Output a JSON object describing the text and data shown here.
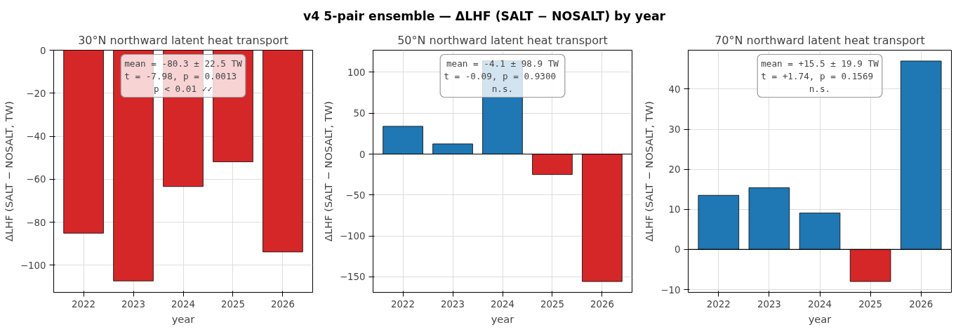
{
  "chart_data": [
    {
      "type": "bar",
      "title": "30°N northward latent heat transport",
      "xlabel": "year",
      "ylabel": "ΔLHF (SALT − NOSALT, TW)",
      "categories": [
        "2022",
        "2023",
        "2024",
        "2025",
        "2026"
      ],
      "values": [
        -85.1,
        -107.3,
        -63.4,
        -51.9,
        -93.8
      ],
      "colors": [
        "#d62728",
        "#d62728",
        "#d62728",
        "#d62728",
        "#d62728"
      ],
      "ylim": [
        -112.6,
        0
      ],
      "yticks": [
        -100,
        -80,
        -60,
        -40,
        -20,
        0
      ],
      "grid": true,
      "annotations": [
        "v4 5-pair ensemble — ΔLHF (SALT − NOSALT) by year",
        "mean = -80.3 ± 22.5 TW\nt = -7.98,  p = 0.0013\np < 0.01 ✓✓"
      ]
    },
    {
      "type": "bar",
      "title": "50°N northward latent heat transport",
      "xlabel": "year",
      "ylabel": "ΔLHF (SALT − NOSALT, TW)",
      "categories": [
        "2022",
        "2023",
        "2024",
        "2025",
        "2026"
      ],
      "values": [
        34,
        12.5,
        114,
        -25,
        -155.8
      ],
      "colors": [
        "#1f77b4",
        "#1f77b4",
        "#1f77b4",
        "#d62728",
        "#d62728"
      ],
      "ylim": [
        -169,
        127
      ],
      "yticks": [
        -150,
        -100,
        -50,
        0,
        50,
        100
      ],
      "grid": true,
      "ref_lines": [
        {
          "axis": "y",
          "value": 0,
          "color": "#000000"
        }
      ],
      "annotations": [
        "mean = -4.1 ± 98.9 TW\nt = -0.09,  p = 0.9300\nn.s."
      ]
    },
    {
      "type": "bar",
      "title": "70°N northward latent heat transport",
      "xlabel": "year",
      "ylabel": "ΔLHF (SALT − NOSALT, TW)",
      "categories": [
        "2022",
        "2023",
        "2024",
        "2025",
        "2026"
      ],
      "values": [
        13.5,
        15.4,
        9.1,
        -8.0,
        47.0
      ],
      "colors": [
        "#1f77b4",
        "#1f77b4",
        "#1f77b4",
        "#d62728",
        "#1f77b4"
      ],
      "ylim": [
        -10.7,
        49.7
      ],
      "yticks": [
        -10,
        0,
        10,
        20,
        30,
        40
      ],
      "grid": true,
      "ref_lines": [
        {
          "axis": "y",
          "value": 0,
          "color": "#000000"
        }
      ],
      "annotations": [
        "mean = +15.5 ± 19.9 TW\nt = +1.74,  p = 0.1569\nn.s."
      ]
    }
  ]
}
